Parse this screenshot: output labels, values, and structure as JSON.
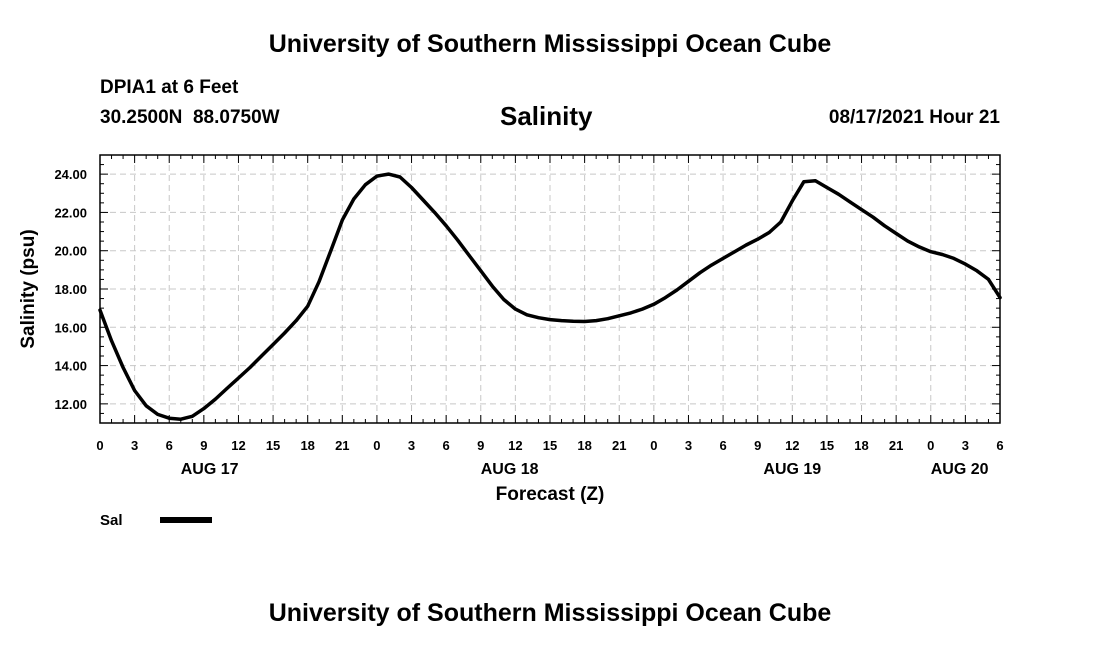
{
  "page": {
    "header_title": "University of Southern Mississippi Ocean Cube",
    "footer_title": "University of Southern Mississippi Ocean Cube",
    "station_name": "DPIA1 at 6 Feet",
    "station_coords": "30.2500N  88.0750W",
    "issued": "08/17/2021 Hour 21"
  },
  "chart_data": {
    "type": "line",
    "title": "Salinity",
    "xlabel": "Forecast (Z)",
    "ylabel": "Salinity (psu)",
    "xlim": [
      0,
      78
    ],
    "ylim": [
      11.0,
      25.0
    ],
    "grid": true,
    "x_tick_labels": [
      "0",
      "3",
      "6",
      "9",
      "12",
      "15",
      "18",
      "21",
      "0",
      "3",
      "6",
      "9",
      "12",
      "15",
      "18",
      "21",
      "0",
      "3",
      "6",
      "9",
      "12",
      "15",
      "18",
      "21",
      "0",
      "3",
      "6"
    ],
    "y_tick_values": [
      12,
      14,
      16,
      18,
      20,
      22,
      24
    ],
    "y_tick_labels": [
      "12.00",
      "14.00",
      "16.00",
      "18.00",
      "20.00",
      "22.00",
      "24.00"
    ],
    "date_labels": [
      {
        "label": "AUG 17",
        "x": 9.5
      },
      {
        "label": "AUG 18",
        "x": 35.5
      },
      {
        "label": "AUG 19",
        "x": 60
      },
      {
        "label": "AUG 20",
        "x": 74.5
      }
    ],
    "legend": {
      "label": "Sal",
      "placement": "bottom-left"
    },
    "series": [
      {
        "name": "Sal",
        "color": "#000000",
        "x": [
          0,
          1,
          2,
          3,
          4,
          5,
          6,
          7,
          8,
          9,
          10,
          11,
          12,
          13,
          14,
          15,
          16,
          17,
          18,
          19,
          20,
          21,
          22,
          23,
          24,
          25,
          26,
          27,
          28,
          29,
          30,
          31,
          32,
          33,
          34,
          35,
          36,
          37,
          38,
          39,
          40,
          41,
          42,
          43,
          44,
          45,
          46,
          47,
          48,
          49,
          50,
          51,
          52,
          53,
          54,
          55,
          56,
          57,
          58,
          59,
          60,
          61,
          62,
          63,
          64,
          65,
          66,
          67,
          68,
          69,
          70,
          71,
          72,
          73,
          74,
          75,
          76,
          77,
          78
        ],
        "values": [
          16.9,
          15.3,
          13.9,
          12.7,
          11.9,
          11.45,
          11.25,
          11.2,
          11.35,
          11.75,
          12.25,
          12.8,
          13.35,
          13.9,
          14.5,
          15.1,
          15.7,
          16.35,
          17.1,
          18.4,
          20.0,
          21.6,
          22.7,
          23.45,
          23.9,
          24.0,
          23.85,
          23.3,
          22.65,
          22.0,
          21.3,
          20.55,
          19.75,
          18.95,
          18.15,
          17.45,
          16.95,
          16.65,
          16.5,
          16.4,
          16.35,
          16.32,
          16.3,
          16.35,
          16.45,
          16.6,
          16.75,
          16.95,
          17.2,
          17.55,
          17.95,
          18.4,
          18.85,
          19.25,
          19.6,
          19.95,
          20.3,
          20.6,
          20.95,
          21.5,
          22.6,
          23.6,
          23.65,
          23.3,
          22.95,
          22.55,
          22.15,
          21.75,
          21.3,
          20.9,
          20.5,
          20.2,
          19.95,
          19.8,
          19.6,
          19.3,
          18.95,
          18.5,
          17.55
        ]
      }
    ]
  }
}
